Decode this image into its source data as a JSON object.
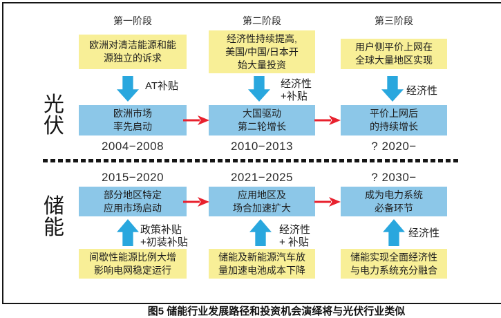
{
  "colors": {
    "yellow_box": "#f8ef97",
    "blue_box": "#8cc7e8",
    "blue_arrow": "#29a7de",
    "red_arrow": "#e8212e",
    "border": "#151515"
  },
  "stages": [
    "第一阶段",
    "第二阶段",
    "第三阶段"
  ],
  "pv": {
    "row_label": "光伏",
    "cols": [
      {
        "driver_lines": [
          "欧洲对清洁能源和能",
          "源独立的诉求"
        ],
        "arrow_label_lines": [
          "AT补贴"
        ],
        "result_lines": [
          "欧洲市场",
          "率先启动"
        ],
        "period": "2004−2008"
      },
      {
        "driver_lines": [
          "经济性持续提高,",
          "美国/中国/日本开",
          "始大量投资"
        ],
        "arrow_label_lines": [
          "经济性",
          "+补贴"
        ],
        "result_lines": [
          "大国驱动",
          "第二轮增长"
        ],
        "period": "2010−2013"
      },
      {
        "driver_lines": [
          "用户侧平价上网在",
          "全球大量地区实现"
        ],
        "arrow_label_lines": [
          "经济性"
        ],
        "result_lines": [
          "平价上网后",
          "的持续增长"
        ],
        "period": "? 2020−"
      }
    ]
  },
  "storage": {
    "row_label": "储能",
    "cols": [
      {
        "period": "2015−2020",
        "result_lines": [
          "部分地区特定",
          "应用市场启动"
        ],
        "arrow_label_lines": [
          "政策补贴",
          "+初装补贴"
        ],
        "driver_lines": [
          "间歇性能源比例大增",
          "影响电网稳定运行"
        ]
      },
      {
        "period": "2021−2025",
        "result_lines": [
          "应用地区及",
          "场合加速扩大"
        ],
        "arrow_label_lines": [
          "经济性",
          "+ 补贴"
        ],
        "driver_lines": [
          "储能及新能源汽车放",
          "量加速电池成本下降"
        ]
      },
      {
        "period": "? 2030−",
        "result_lines": [
          "成为电力系统",
          "必备环节"
        ],
        "arrow_label_lines": [
          "经济性"
        ],
        "driver_lines": [
          "储能实现全面经济性",
          "与电力系统充分融合"
        ]
      }
    ]
  },
  "caption": "图5 储能行业发展路径和投资机会演绎将与光伏行业类似"
}
